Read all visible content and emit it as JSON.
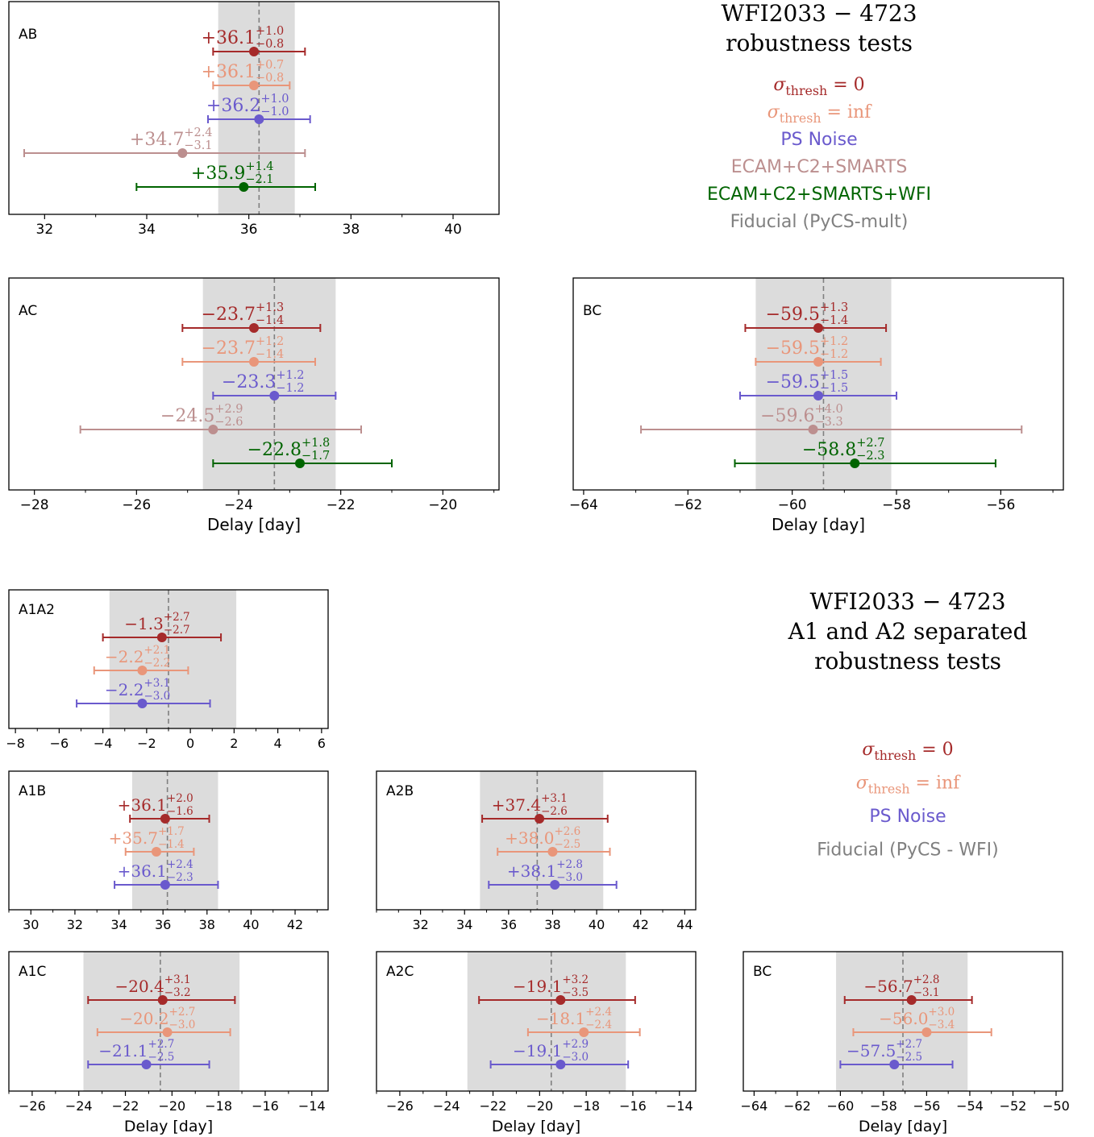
{
  "colors": {
    "thresh0": "#a52a2a",
    "threshinf": "#e9967a",
    "psnoise": "#6a5acd",
    "ecam": "#bc8f8f",
    "ecamwfi": "#006400",
    "fiducial": "#808080",
    "band": "#dcdcdc"
  },
  "legends": [
    {
      "title_lines": [
        "WFI2033 − 4723",
        "robustness tests"
      ],
      "entries": [
        {
          "text": "σ",
          "sub": "thresh",
          "suffix": " = 0",
          "math": true,
          "color_key": "thresh0"
        },
        {
          "text": "σ",
          "sub": "thresh",
          "suffix": " = inf",
          "math": true,
          "color_key": "threshinf"
        },
        {
          "text": "PS Noise",
          "math": false,
          "color_key": "psnoise"
        },
        {
          "text": "ECAM+C2+SMARTS",
          "math": false,
          "color_key": "ecam"
        },
        {
          "text": "ECAM+C2+SMARTS+WFI",
          "math": false,
          "color_key": "ecamwfi"
        },
        {
          "text": "Fiducial (PyCS-mult)",
          "math": false,
          "color_key": "fiducial"
        }
      ]
    },
    {
      "title_lines": [
        "WFI2033 − 4723",
        "A1 and A2 separated",
        "robustness tests"
      ],
      "entries": [
        {
          "text": "σ",
          "sub": "thresh",
          "suffix": " = 0",
          "math": true,
          "color_key": "thresh0"
        },
        {
          "text": "σ",
          "sub": "thresh",
          "suffix": " = inf",
          "math": true,
          "color_key": "threshinf"
        },
        {
          "text": "PS Noise",
          "math": false,
          "color_key": "psnoise"
        },
        {
          "text": "Fiducial (PyCS - WFI)",
          "math": false,
          "color_key": "fiducial"
        }
      ]
    }
  ],
  "chart_data": [
    {
      "type": "errorbar",
      "label": "AB",
      "xlim": [
        31.3,
        40.9
      ],
      "ticks": [
        32,
        34,
        36,
        38,
        40
      ],
      "xlabel": "",
      "fiducial": {
        "value": 36.2,
        "low": 35.4,
        "high": 36.9
      },
      "points": [
        {
          "color_key": "thresh0",
          "value": 36.1,
          "plus": 1.0,
          "minus": 0.8,
          "label": "+36.1",
          "plus_label": "+1.0",
          "minus_label": "−0.8"
        },
        {
          "color_key": "threshinf",
          "value": 36.1,
          "plus": 0.7,
          "minus": 0.8,
          "label": "+36.1",
          "plus_label": "+0.7",
          "minus_label": "−0.8"
        },
        {
          "color_key": "psnoise",
          "value": 36.2,
          "plus": 1.0,
          "minus": 1.0,
          "label": "+36.2",
          "plus_label": "+1.0",
          "minus_label": "−1.0"
        },
        {
          "color_key": "ecam",
          "value": 34.7,
          "plus": 2.4,
          "minus": 3.1,
          "label": "+34.7",
          "plus_label": "+2.4",
          "minus_label": "−3.1"
        },
        {
          "color_key": "ecamwfi",
          "value": 35.9,
          "plus": 1.4,
          "minus": 2.1,
          "label": "+35.9",
          "plus_label": "+1.4",
          "minus_label": "−2.1"
        }
      ]
    },
    {
      "type": "errorbar",
      "label": "AC",
      "xlim": [
        -28.5,
        -18.9
      ],
      "ticks": [
        -28,
        -26,
        -24,
        -22,
        -20
      ],
      "xlabel": "Delay [day]",
      "fiducial": {
        "value": -23.3,
        "low": -24.7,
        "high": -22.1
      },
      "points": [
        {
          "color_key": "thresh0",
          "value": -23.7,
          "plus": 1.3,
          "minus": 1.4,
          "label": "−23.7",
          "plus_label": "+1.3",
          "minus_label": "−1.4"
        },
        {
          "color_key": "threshinf",
          "value": -23.7,
          "plus": 1.2,
          "minus": 1.4,
          "label": "−23.7",
          "plus_label": "+1.2",
          "minus_label": "−1.4"
        },
        {
          "color_key": "psnoise",
          "value": -23.3,
          "plus": 1.2,
          "minus": 1.2,
          "label": "−23.3",
          "plus_label": "+1.2",
          "minus_label": "−1.2"
        },
        {
          "color_key": "ecam",
          "value": -24.5,
          "plus": 2.9,
          "minus": 2.6,
          "label": "−24.5",
          "plus_label": "+2.9",
          "minus_label": "−2.6"
        },
        {
          "color_key": "ecamwfi",
          "value": -22.8,
          "plus": 1.8,
          "minus": 1.7,
          "label": "−22.8",
          "plus_label": "+1.8",
          "minus_label": "−1.7"
        }
      ]
    },
    {
      "type": "errorbar",
      "label": "BC",
      "xlim": [
        -64.2,
        -54.8
      ],
      "ticks": [
        -64,
        -62,
        -60,
        -58,
        -56
      ],
      "xlabel": "Delay [day]",
      "fiducial": {
        "value": -59.4,
        "low": -60.7,
        "high": -58.1
      },
      "points": [
        {
          "color_key": "thresh0",
          "value": -59.5,
          "plus": 1.3,
          "minus": 1.4,
          "label": "−59.5",
          "plus_label": "+1.3",
          "minus_label": "−1.4"
        },
        {
          "color_key": "threshinf",
          "value": -59.5,
          "plus": 1.2,
          "minus": 1.2,
          "label": "−59.5",
          "plus_label": "+1.2",
          "minus_label": "−1.2"
        },
        {
          "color_key": "psnoise",
          "value": -59.5,
          "plus": 1.5,
          "minus": 1.5,
          "label": "−59.5",
          "plus_label": "+1.5",
          "minus_label": "−1.5"
        },
        {
          "color_key": "ecam",
          "value": -59.6,
          "plus": 4.0,
          "minus": 3.3,
          "label": "−59.6",
          "plus_label": "+4.0",
          "minus_label": "−3.3"
        },
        {
          "color_key": "ecamwfi",
          "value": -58.8,
          "plus": 2.7,
          "minus": 2.3,
          "label": "−58.8",
          "plus_label": "+2.7",
          "minus_label": "−2.3"
        }
      ]
    },
    {
      "type": "errorbar",
      "label": "A1A2",
      "xlim": [
        -8.3,
        6.3
      ],
      "ticks": [
        -8,
        -6,
        -4,
        -2,
        0,
        2,
        4,
        6
      ],
      "xlabel": "",
      "fiducial": {
        "value": -1.0,
        "low": -3.7,
        "high": 2.1
      },
      "points": [
        {
          "color_key": "thresh0",
          "value": -1.3,
          "plus": 2.7,
          "minus": 2.7,
          "label": "−1.3",
          "plus_label": "+2.7",
          "minus_label": "−2.7"
        },
        {
          "color_key": "threshinf",
          "value": -2.2,
          "plus": 2.1,
          "minus": 2.2,
          "label": "−2.2",
          "plus_label": "+2.1",
          "minus_label": "−2.2"
        },
        {
          "color_key": "psnoise",
          "value": -2.2,
          "plus": 3.1,
          "minus": 3.0,
          "label": "−2.2",
          "plus_label": "+3.1",
          "minus_label": "−3.0"
        }
      ]
    },
    {
      "type": "errorbar",
      "label": "A1B",
      "xlim": [
        29.0,
        43.5
      ],
      "ticks": [
        30,
        32,
        34,
        36,
        38,
        40,
        42
      ],
      "xlabel": "",
      "fiducial": {
        "value": 36.2,
        "low": 34.6,
        "high": 38.5
      },
      "points": [
        {
          "color_key": "thresh0",
          "value": 36.1,
          "plus": 2.0,
          "minus": 1.6,
          "label": "+36.1",
          "plus_label": "+2.0",
          "minus_label": "−1.6"
        },
        {
          "color_key": "threshinf",
          "value": 35.7,
          "plus": 1.7,
          "minus": 1.4,
          "label": "+35.7",
          "plus_label": "+1.7",
          "minus_label": "−1.4"
        },
        {
          "color_key": "psnoise",
          "value": 36.1,
          "plus": 2.4,
          "minus": 2.3,
          "label": "+36.1",
          "plus_label": "+2.4",
          "minus_label": "−2.3"
        }
      ]
    },
    {
      "type": "errorbar",
      "label": "A2B",
      "xlim": [
        30.0,
        44.5
      ],
      "ticks": [
        32,
        34,
        36,
        38,
        40,
        42,
        44
      ],
      "xlabel": "",
      "fiducial": {
        "value": 37.3,
        "low": 34.7,
        "high": 40.3
      },
      "points": [
        {
          "color_key": "thresh0",
          "value": 37.4,
          "plus": 3.1,
          "minus": 2.6,
          "label": "+37.4",
          "plus_label": "+3.1",
          "minus_label": "−2.6"
        },
        {
          "color_key": "threshinf",
          "value": 38.0,
          "plus": 2.6,
          "minus": 2.5,
          "label": "+38.0",
          "plus_label": "+2.6",
          "minus_label": "−2.5"
        },
        {
          "color_key": "psnoise",
          "value": 38.1,
          "plus": 2.8,
          "minus": 3.0,
          "label": "+38.1",
          "plus_label": "+2.8",
          "minus_label": "−3.0"
        }
      ]
    },
    {
      "type": "errorbar",
      "label": "A1C",
      "xlim": [
        -27.0,
        -13.3
      ],
      "ticks": [
        -26,
        -24,
        -22,
        -20,
        -18,
        -16,
        -14
      ],
      "xlabel": "Delay [day]",
      "fiducial": {
        "value": -20.5,
        "low": -23.8,
        "high": -17.1
      },
      "points": [
        {
          "color_key": "thresh0",
          "value": -20.4,
          "plus": 3.1,
          "minus": 3.2,
          "label": "−20.4",
          "plus_label": "+3.1",
          "minus_label": "−3.2"
        },
        {
          "color_key": "threshinf",
          "value": -20.2,
          "plus": 2.7,
          "minus": 3.0,
          "label": "−20.2",
          "plus_label": "+2.7",
          "minus_label": "−3.0"
        },
        {
          "color_key": "psnoise",
          "value": -21.1,
          "plus": 2.7,
          "minus": 2.5,
          "label": "−21.1",
          "plus_label": "+2.7",
          "minus_label": "−2.5"
        }
      ]
    },
    {
      "type": "errorbar",
      "label": "A2C",
      "xlim": [
        -27.0,
        -13.3
      ],
      "ticks": [
        -26,
        -24,
        -22,
        -20,
        -18,
        -16,
        -14
      ],
      "xlabel": "Delay [day]",
      "fiducial": {
        "value": -19.5,
        "low": -23.1,
        "high": -16.3
      },
      "points": [
        {
          "color_key": "thresh0",
          "value": -19.1,
          "plus": 3.2,
          "minus": 3.5,
          "label": "−19.1",
          "plus_label": "+3.2",
          "minus_label": "−3.5"
        },
        {
          "color_key": "threshinf",
          "value": -18.1,
          "plus": 2.4,
          "minus": 2.4,
          "label": "−18.1",
          "plus_label": "+2.4",
          "minus_label": "−2.4"
        },
        {
          "color_key": "psnoise",
          "value": -19.1,
          "plus": 2.9,
          "minus": 3.0,
          "label": "−19.1",
          "plus_label": "+2.9",
          "minus_label": "−3.0"
        }
      ]
    },
    {
      "type": "errorbar",
      "label": "BC",
      "xlim": [
        -64.5,
        -49.7
      ],
      "ticks": [
        -64,
        -62,
        -60,
        -58,
        -56,
        -54,
        -52,
        -50
      ],
      "xlabel": "Delay [day]",
      "fiducial": {
        "value": -57.1,
        "low": -60.2,
        "high": -54.1
      },
      "points": [
        {
          "color_key": "thresh0",
          "value": -56.7,
          "plus": 2.8,
          "minus": 3.1,
          "label": "−56.7",
          "plus_label": "+2.8",
          "minus_label": "−3.1"
        },
        {
          "color_key": "threshinf",
          "value": -56.0,
          "plus": 3.0,
          "minus": 3.4,
          "label": "−56.0",
          "plus_label": "+3.0",
          "minus_label": "−3.4"
        },
        {
          "color_key": "psnoise",
          "value": -57.5,
          "plus": 2.7,
          "minus": 2.5,
          "label": "−57.5",
          "plus_label": "+2.7",
          "minus_label": "−2.5"
        }
      ]
    }
  ]
}
